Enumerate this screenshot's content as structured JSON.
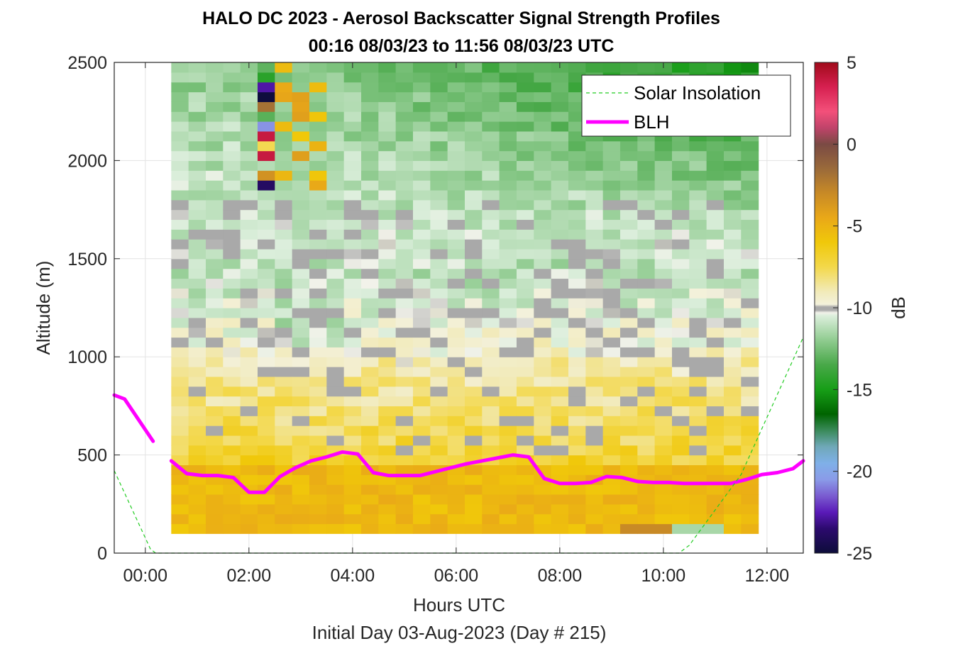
{
  "chart_data": {
    "type": "heatmap",
    "title": "HALO DC 2023 - Aerosol Backscatter Signal Strength Profiles",
    "subtitle": "00:16 08/03/23 to 11:56 08/03/23  UTC",
    "xlabel": "Hours UTC",
    "x_sublabel": "Initial Day 03-Aug-2023 (Day # 215)",
    "ylabel": "Altitude (m)",
    "xlim": [
      -0.6,
      12.7
    ],
    "ylim": [
      0,
      2500
    ],
    "x_ticks": [
      0,
      2,
      4,
      6,
      8,
      10,
      12
    ],
    "x_tick_labels": [
      "00:00",
      "02:00",
      "04:00",
      "06:00",
      "08:00",
      "10:00",
      "12:00"
    ],
    "y_ticks": [
      0,
      500,
      1000,
      1500,
      2000,
      2500
    ],
    "y_tick_labels": [
      "0",
      "500",
      "1000",
      "1500",
      "2000",
      "2500"
    ],
    "grid": true,
    "colorbar": {
      "label": "dB",
      "range": [
        -25,
        5
      ],
      "ticks": [
        5,
        0,
        -5,
        -10,
        -15,
        -20,
        -25
      ],
      "tick_labels": [
        "5",
        "0",
        "-5",
        "-10",
        "-15",
        "-20",
        "-25"
      ],
      "colors": [
        {
          "v": -25,
          "c": "#0d0d3a"
        },
        {
          "v": -23.5,
          "c": "#2c0a6e"
        },
        {
          "v": -22.5,
          "c": "#5a1ab8"
        },
        {
          "v": -21.5,
          "c": "#7a5cd0"
        },
        {
          "v": -20.5,
          "c": "#8a9be8"
        },
        {
          "v": -19.5,
          "c": "#7fb0e8"
        },
        {
          "v": -18.5,
          "c": "#6fa8b8"
        },
        {
          "v": -17.5,
          "c": "#3a8a5a"
        },
        {
          "v": -16.5,
          "c": "#006400"
        },
        {
          "v": -15,
          "c": "#179e17"
        },
        {
          "v": -13.5,
          "c": "#48a848"
        },
        {
          "v": -12,
          "c": "#8fcb8f"
        },
        {
          "v": -10.5,
          "c": "#dbeedb"
        },
        {
          "v": -10.3,
          "c": "#f2f2ea"
        },
        {
          "v": -10.15,
          "c": "#a9a9a9"
        },
        {
          "v": -9.95,
          "c": "#a9a9a9"
        },
        {
          "v": -9.8,
          "c": "#f3f1dc"
        },
        {
          "v": -9,
          "c": "#f2eab8"
        },
        {
          "v": -7.5,
          "c": "#f3d84a"
        },
        {
          "v": -6,
          "c": "#f0c80a"
        },
        {
          "v": -4.5,
          "c": "#e9a818"
        },
        {
          "v": -3,
          "c": "#c88a26"
        },
        {
          "v": -1.5,
          "c": "#9a6a3a"
        },
        {
          "v": 0,
          "c": "#7a4a44"
        },
        {
          "v": 1,
          "c": "#c0436a"
        },
        {
          "v": 2,
          "c": "#f3507a"
        },
        {
          "v": 3.5,
          "c": "#d62050"
        },
        {
          "v": 5,
          "c": "#a00a1a"
        }
      ]
    },
    "legend": {
      "placement": "top-right",
      "entries": [
        {
          "label": "Solar Insolation",
          "style": "dashed",
          "color": "#22cc22"
        },
        {
          "label": "BLH",
          "style": "solid",
          "color": "#ff00ff"
        }
      ]
    },
    "heatmap": {
      "x_start": 0.5,
      "x_step": 0.3333,
      "x_count": 34,
      "y_start": 100,
      "y_step": 50,
      "y_count": 48,
      "missing_color": "#a9a9a9",
      "value_unit": "dB"
    },
    "series": [
      {
        "name": "BLH",
        "color": "#ff00ff",
        "segments": [
          {
            "x": [
              -0.6,
              -0.4,
              0.15
            ],
            "y": [
              805,
              785,
              570
            ]
          },
          {
            "x": [
              0.5,
              0.8,
              1.1,
              1.4,
              1.7,
              2.0,
              2.3,
              2.6,
              2.9,
              3.2,
              3.5,
              3.8,
              4.1,
              4.4,
              4.7,
              5.0,
              5.3,
              5.6,
              5.9,
              6.2,
              6.5,
              6.8,
              7.1,
              7.4,
              7.7,
              8.0,
              8.3,
              8.6,
              8.9,
              9.2,
              9.5,
              9.8,
              10.1,
              10.4,
              10.7,
              11.0,
              11.3,
              11.6,
              11.9,
              12.2,
              12.5,
              12.7
            ],
            "y": [
              470,
              405,
              395,
              395,
              385,
              310,
              310,
              390,
              435,
              470,
              490,
              515,
              505,
              410,
              395,
              395,
              395,
              415,
              435,
              455,
              470,
              485,
              500,
              490,
              380,
              355,
              355,
              360,
              390,
              385,
              365,
              360,
              360,
              355,
              355,
              355,
              355,
              375,
              400,
              410,
              430,
              470
            ]
          }
        ]
      },
      {
        "name": "Solar Insolation",
        "color": "#22cc22",
        "style": "dashed",
        "x": [
          -0.6,
          0.1,
          0.2,
          0.5,
          10.3,
          10.5,
          11.5,
          12.7
        ],
        "y": [
          420,
          20,
          0,
          0,
          0,
          40,
          400,
          1100
        ]
      }
    ]
  }
}
